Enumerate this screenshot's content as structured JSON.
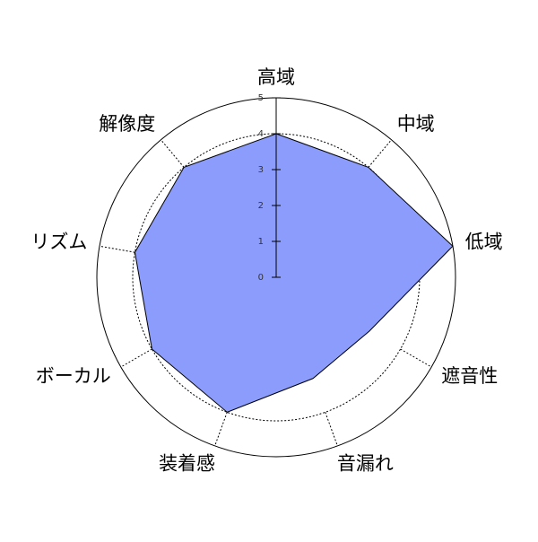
{
  "chart_data": {
    "type": "radar",
    "categories": [
      "高域",
      "中域",
      "低域",
      "遮音性",
      "音漏れ",
      "装着感",
      "ボーカル",
      "リズム",
      "解像度"
    ],
    "values": [
      4,
      4,
      5,
      3,
      3,
      4,
      4,
      4,
      4
    ],
    "color": "#8c9cfc",
    "rlim": [
      0,
      5
    ],
    "rticks": [
      0,
      1,
      2,
      3,
      4,
      5
    ]
  }
}
